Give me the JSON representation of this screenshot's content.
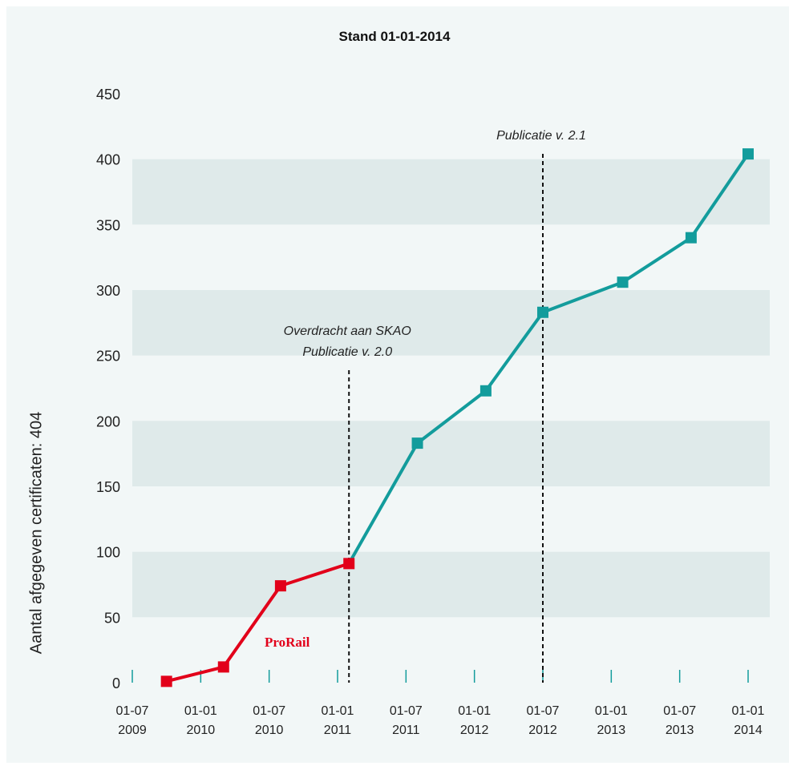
{
  "chart_data": {
    "type": "line",
    "title": "Stand 01-01-2014",
    "ylabel": "Aantal afgegeven certificaten: 404",
    "xlabel": "",
    "ylim": [
      0,
      450
    ],
    "yticks": [
      0,
      50,
      100,
      150,
      200,
      250,
      300,
      350,
      400,
      450
    ],
    "xticks": [
      {
        "line1": "01-07",
        "line2": "2009"
      },
      {
        "line1": "01-01",
        "line2": "2010"
      },
      {
        "line1": "01-07",
        "line2": "2010"
      },
      {
        "line1": "01-01",
        "line2": "2011"
      },
      {
        "line1": "01-07",
        "line2": "2011"
      },
      {
        "line1": "01-01",
        "line2": "2012"
      },
      {
        "line1": "01-07",
        "line2": "2012"
      },
      {
        "line1": "01-01",
        "line2": "2013"
      },
      {
        "line1": "01-07",
        "line2": "2013"
      },
      {
        "line1": "01-01",
        "line2": "2014"
      }
    ],
    "series": [
      {
        "name": "ProRail",
        "color": "#e2001a",
        "x": [
          "2009-10",
          "2010-03",
          "2010-08",
          "2011-02"
        ],
        "y": [
          1,
          12,
          74,
          91
        ]
      },
      {
        "name": "",
        "color": "#139c9c",
        "x": [
          "2011-02",
          "2011-08",
          "2012-02",
          "2012-07",
          "2013-02",
          "2013-08",
          "2014-01"
        ],
        "y": [
          91,
          183,
          223,
          283,
          306,
          340,
          404
        ]
      }
    ],
    "annotations": [
      {
        "lines": [
          "Overdracht aan SKAO",
          "Publicatie v. 2.0"
        ],
        "x": "2011-02"
      },
      {
        "lines": [
          "Publicatie v. 2.1"
        ],
        "x": "2012-07"
      }
    ],
    "grid": "alternating horizontal bands",
    "colors": {
      "band": "#dfeaea",
      "background": "#f2f7f7"
    }
  }
}
